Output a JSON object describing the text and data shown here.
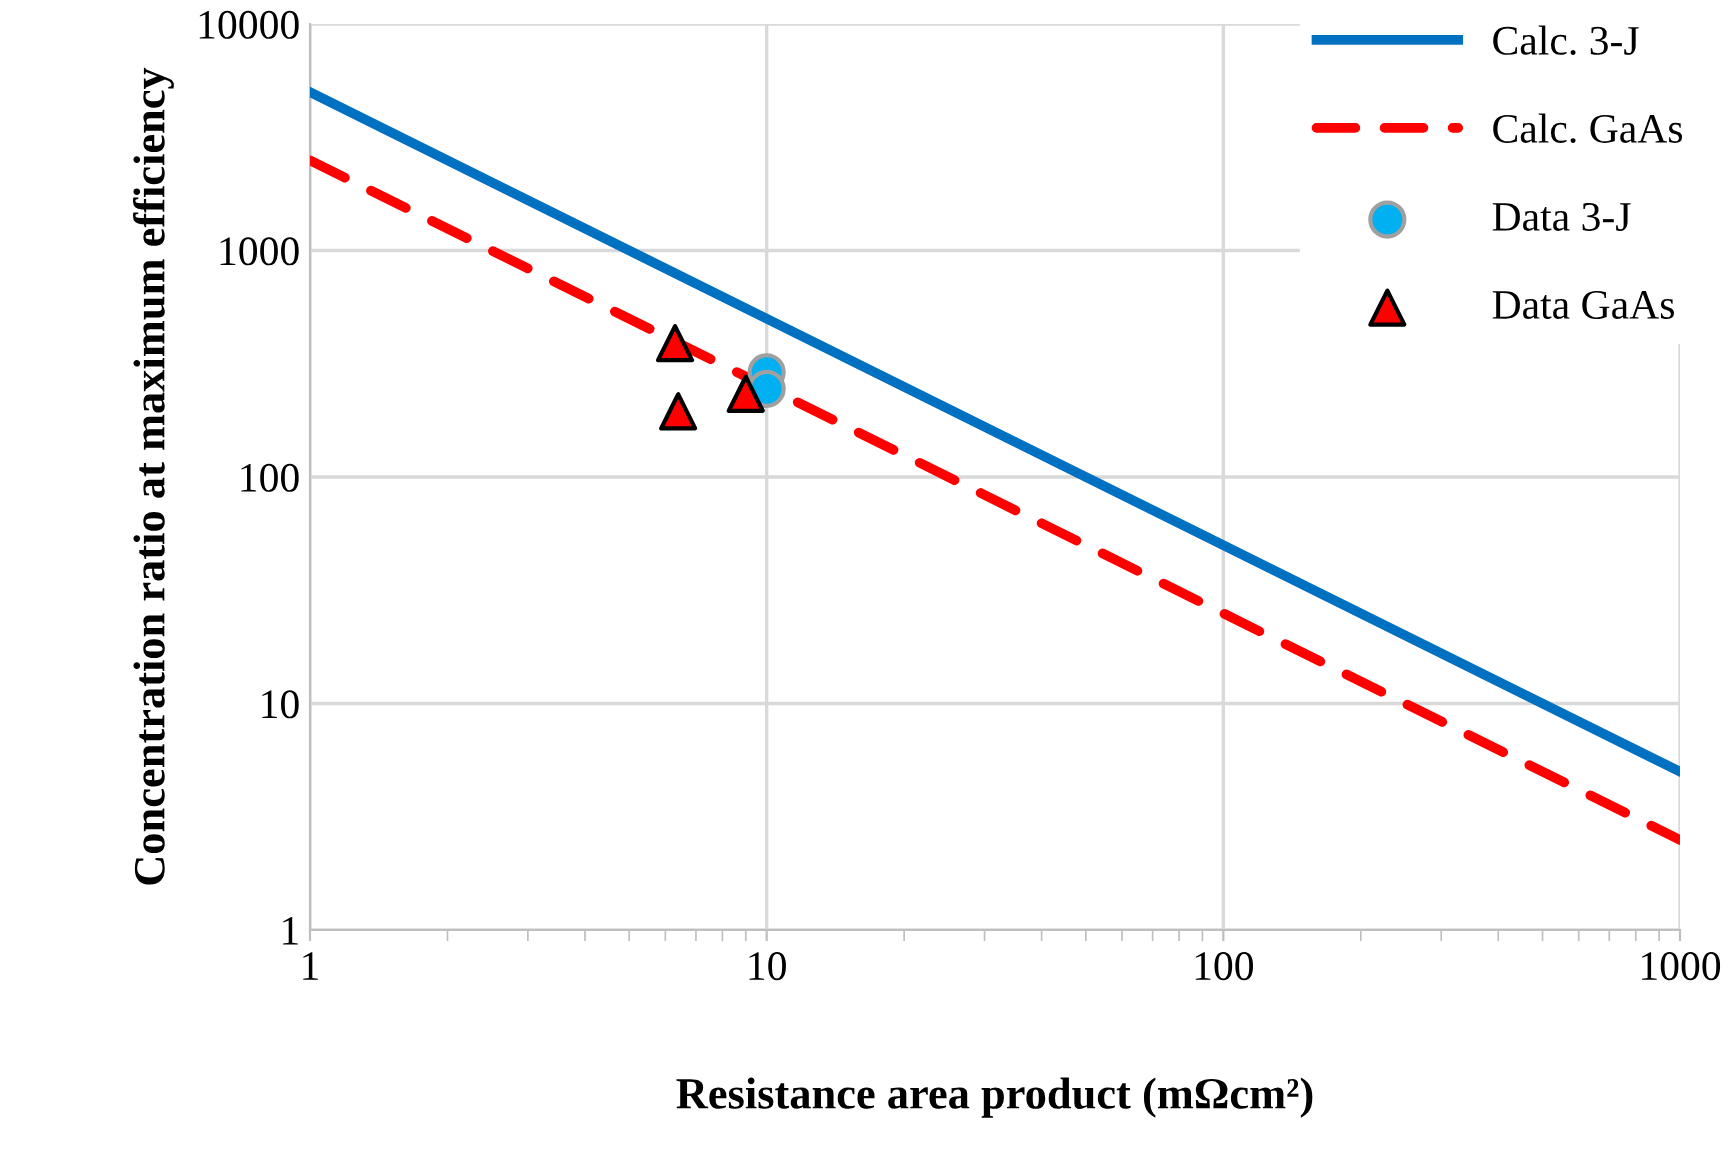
{
  "chart_data": {
    "type": "line",
    "xlabel": "Resistance area product (mΩcm²)",
    "ylabel": "Concentration ratio at maximum efficiency",
    "log": "xy",
    "xlim": [
      1,
      1000
    ],
    "ylim": [
      1,
      10000
    ],
    "xticks": [
      1,
      10,
      100,
      1000
    ],
    "yticks": [
      1,
      10,
      100,
      1000,
      10000
    ],
    "grid": true,
    "legend": "top right",
    "series": [
      {
        "name": "Calc. 3-J",
        "color": "#0070c0",
        "line_style": "solid",
        "marker": "none",
        "x": [
          1,
          1000
        ],
        "values": [
          5000,
          5
        ]
      },
      {
        "name": "Calc. GaAs",
        "color": "#ff0000",
        "line_style": "dashed",
        "marker": "none",
        "x": [
          1,
          1000
        ],
        "values": [
          2500,
          2.5
        ]
      },
      {
        "name": "Data 3-J",
        "type": "scatter",
        "color": "#00b0f0",
        "marker": "circle",
        "x": [
          10,
          10
        ],
        "values": [
          290,
          245
        ]
      },
      {
        "name": "Data GaAs",
        "type": "scatter",
        "color": "#ff0000",
        "marker": "triangle",
        "x": [
          6.3,
          6.4,
          9.0
        ],
        "values": [
          390,
          195,
          233
        ]
      }
    ]
  }
}
